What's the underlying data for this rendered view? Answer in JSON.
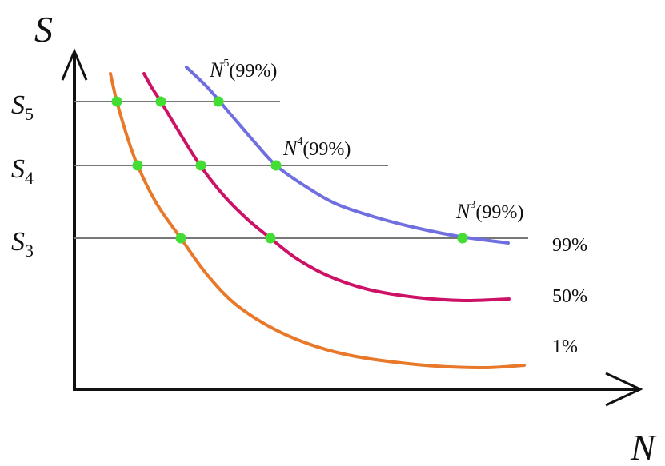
{
  "chart_data": {
    "type": "line",
    "title": "",
    "xlabel": "N",
    "ylabel": "S",
    "grid": false,
    "legend": "none",
    "series": [
      {
        "name": "99%",
        "color": "#6f6fe0",
        "points": [
          [
            233,
            84
          ],
          [
            260,
            110
          ],
          [
            290,
            145
          ],
          [
            320,
            180
          ],
          [
            345,
            207
          ],
          [
            380,
            232
          ],
          [
            420,
            255
          ],
          [
            470,
            272
          ],
          [
            520,
            285
          ],
          [
            575,
            296
          ],
          [
            635,
            304
          ]
        ]
      },
      {
        "name": "50%",
        "color": "#cc1166",
        "points": [
          [
            180,
            92
          ],
          [
            190,
            110
          ],
          [
            201,
            127
          ],
          [
            225,
            167
          ],
          [
            251,
            208
          ],
          [
            280,
            245
          ],
          [
            310,
            275
          ],
          [
            338,
            298
          ],
          [
            370,
            323
          ],
          [
            410,
            345
          ],
          [
            460,
            362
          ],
          [
            520,
            372
          ],
          [
            580,
            376
          ],
          [
            636,
            374
          ]
        ]
      },
      {
        "name": "1%",
        "color": "#e8782a",
        "points": [
          [
            138,
            92
          ],
          [
            142,
            110
          ],
          [
            146,
            127
          ],
          [
            158,
            168
          ],
          [
            172,
            207
          ],
          [
            196,
            255
          ],
          [
            226,
            298
          ],
          [
            260,
            345
          ],
          [
            300,
            385
          ],
          [
            360,
            420
          ],
          [
            430,
            443
          ],
          [
            520,
            456
          ],
          [
            600,
            460
          ],
          [
            655,
            457
          ]
        ]
      }
    ],
    "levels": [
      {
        "letter": "S",
        "sub": "5",
        "y": 127,
        "x_end": 350
      },
      {
        "letter": "S",
        "sub": "4",
        "y": 207,
        "x_end": 485
      },
      {
        "letter": "S",
        "sub": "3",
        "y": 298,
        "x_end": 660
      }
    ],
    "intersections": [
      [
        146,
        127
      ],
      [
        201,
        127
      ],
      [
        273,
        127
      ],
      [
        172,
        207
      ],
      [
        251,
        207
      ],
      [
        345,
        207
      ],
      [
        226,
        298
      ],
      [
        338,
        298
      ],
      [
        578,
        298
      ]
    ],
    "annotations": [
      {
        "letter": "N",
        "sup": "5",
        "pct": "(99%)"
      },
      {
        "letter": "N",
        "sup": "4",
        "pct": "(99%)"
      },
      {
        "letter": "N",
        "sup": "3",
        "pct": "(99%)"
      }
    ],
    "curve_labels": [
      "99%",
      "50%",
      "1%"
    ],
    "colors": {
      "axis": "#111111",
      "level_line": "#777777",
      "point": "#44dd33"
    }
  }
}
